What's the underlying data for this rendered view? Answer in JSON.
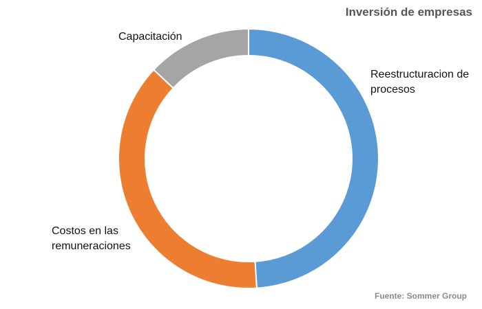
{
  "chart_data": {
    "type": "pie",
    "donut": true,
    "title": "Inversión de empresas",
    "source": "Fuente: Sommer Group",
    "legend": "none",
    "slices": [
      {
        "label_lines": [
          "Reestructuracion de",
          "procesos"
        ],
        "value": 49,
        "color": "#5b9bd5"
      },
      {
        "label_lines": [
          "Costos en las",
          "remuneraciones"
        ],
        "value": 38,
        "color": "#ed7d31"
      },
      {
        "label_lines": [
          "Capacitación"
        ],
        "value": 13,
        "color": "#a5a5a5"
      }
    ]
  }
}
